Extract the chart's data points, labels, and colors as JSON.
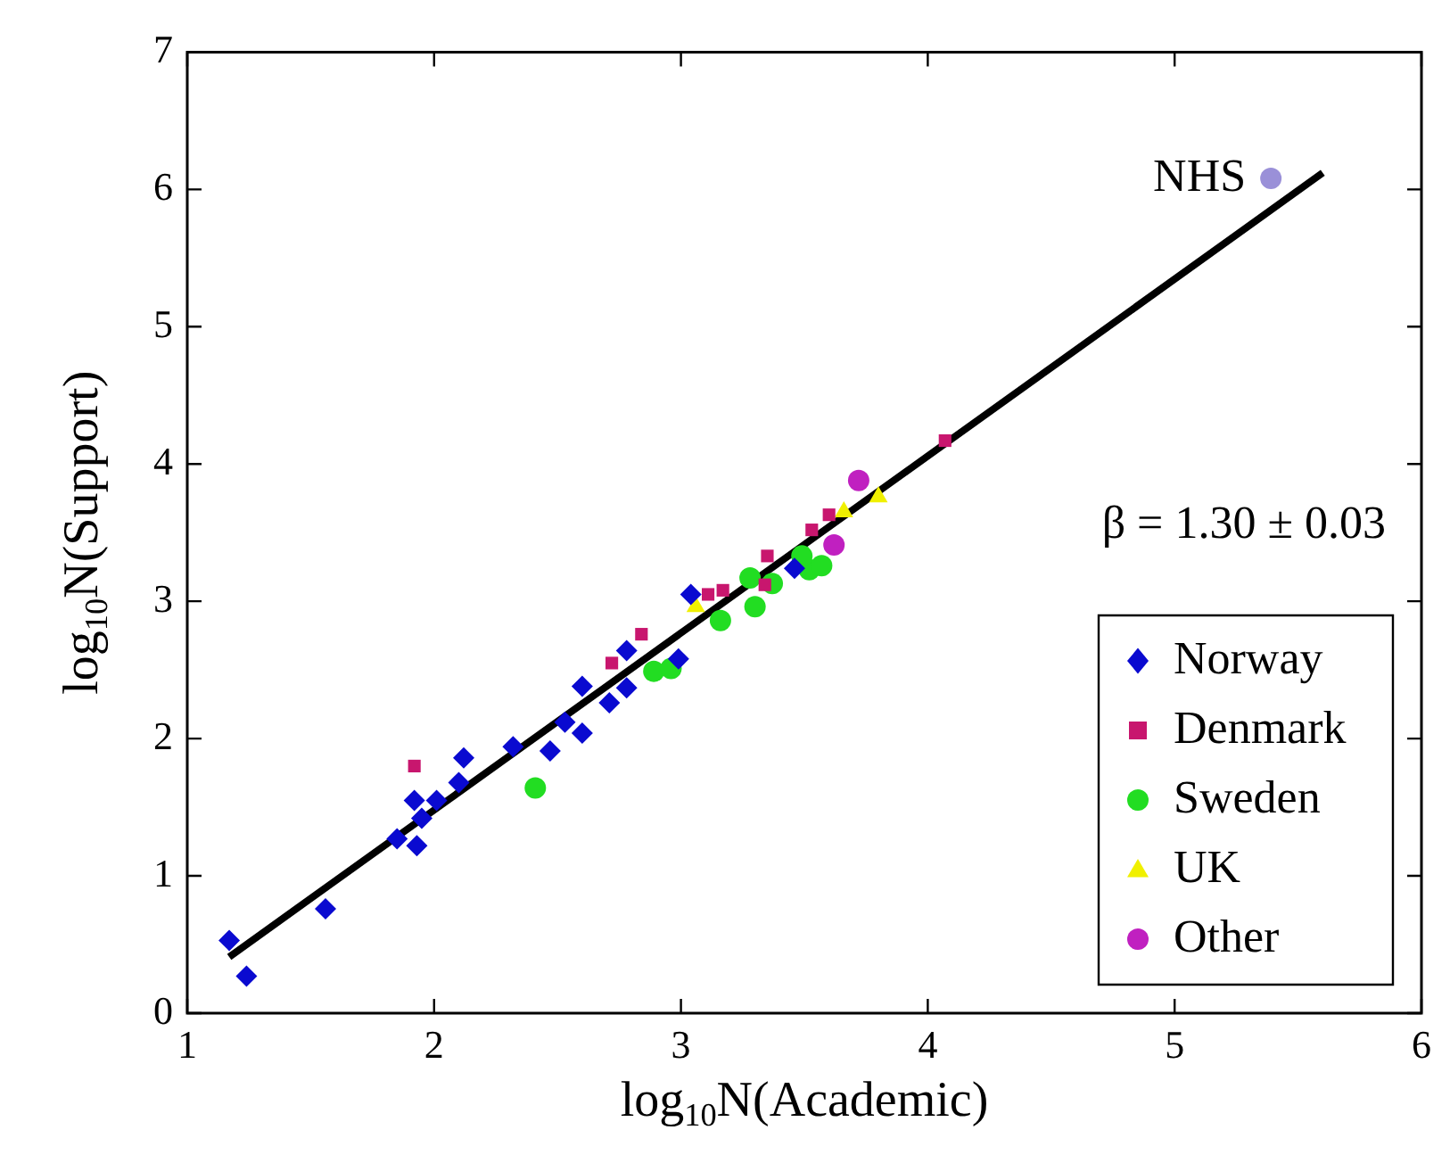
{
  "chart_data": {
    "type": "scatter",
    "xlabel": "log$_{10}$N(Academic)",
    "ylabel": "log$_{10}$N(Support)",
    "xlim": [
      1,
      6
    ],
    "ylim": [
      0,
      7
    ],
    "xticks": [
      1,
      2,
      3,
      4,
      5,
      6
    ],
    "yticks": [
      0,
      1,
      2,
      3,
      4,
      5,
      6,
      7
    ],
    "legend": "bottom right",
    "annotations": [
      "β = 1.30 ± 0.03",
      {
        "text": "NHS",
        "x": 5.39,
        "y": 6.08
      }
    ],
    "series": [
      {
        "name": "Norway",
        "color": "#0a0ad0",
        "marker": "diamond",
        "x": [
          1.17,
          1.24,
          1.56,
          1.85,
          1.93,
          1.92,
          2.01,
          2.1,
          2.12,
          1.95,
          2.32,
          2.47,
          2.53,
          2.6,
          2.6,
          2.71,
          2.78,
          2.78,
          2.99,
          3.04,
          3.46
        ],
        "values": [
          0.53,
          0.27,
          0.76,
          1.27,
          1.22,
          1.55,
          1.55,
          1.68,
          1.86,
          1.42,
          1.94,
          1.91,
          2.12,
          2.04,
          2.38,
          2.26,
          2.37,
          2.64,
          2.58,
          3.05,
          3.24
        ]
      },
      {
        "name": "Denmark",
        "color": "#c8166e",
        "marker": "square",
        "x": [
          1.92,
          2.72,
          2.84,
          3.11,
          3.17,
          3.34,
          3.35,
          3.53,
          3.6,
          4.07
        ],
        "values": [
          1.8,
          2.55,
          2.76,
          3.05,
          3.08,
          3.12,
          3.33,
          3.52,
          3.63,
          4.17
        ]
      },
      {
        "name": "Sweden",
        "color": "#22dd22",
        "marker": "circle",
        "x": [
          2.41,
          2.89,
          2.96,
          3.16,
          3.3,
          3.28,
          3.37,
          3.52,
          3.57,
          3.49
        ],
        "values": [
          1.64,
          2.49,
          2.51,
          2.86,
          2.96,
          3.17,
          3.13,
          3.23,
          3.26,
          3.33
        ]
      },
      {
        "name": "UK",
        "color": "#f0f000",
        "marker": "triangle",
        "x": [
          3.06,
          3.66,
          3.8
        ],
        "values": [
          2.96,
          3.65,
          3.76
        ]
      },
      {
        "name": "Other",
        "color": "#c020c0",
        "marker": "circle",
        "x": [
          3.72,
          3.62
        ],
        "values": [
          3.88,
          3.41
        ]
      },
      {
        "color": "#9a90d8",
        "marker": "circle",
        "x": [
          5.39
        ],
        "values": [
          6.08
        ]
      },
      {
        "type": "line",
        "color": "#000000",
        "marker": "none",
        "x": [
          1.17,
          5.6
        ],
        "values": [
          0.41,
          6.12
        ]
      }
    ]
  }
}
